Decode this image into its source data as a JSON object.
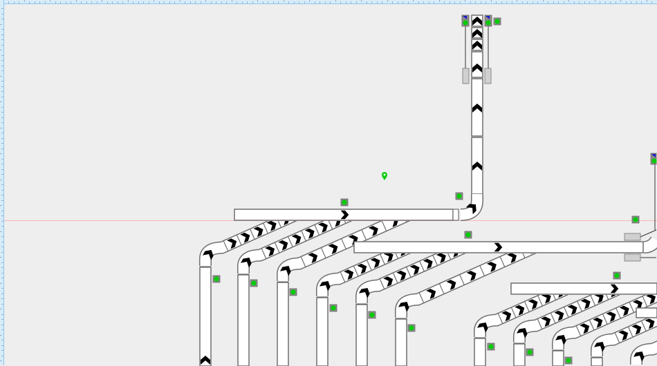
{
  "canvas": {
    "background": "#eeeeee",
    "ruler_color": "#d8ebf8",
    "ruler_border": "#8cc6ee",
    "guide_line_color": "#f2b8b8"
  },
  "conveyor": {
    "belt_fill": "#ffffff",
    "belt_border": "#6e6e6e",
    "arrow_color": "#000000"
  },
  "indicators": {
    "status": "running",
    "status_color": "#00cc00",
    "frame_color": "#8a8a8a",
    "direction_marker_color": "#1a1acc",
    "count": 15
  },
  "location_pin": {
    "icon": "map-pin-icon",
    "color": "#11cc11"
  },
  "sensors": {
    "icon": "photo-eye-sensor-icon",
    "fill": "#d0d0d0"
  }
}
